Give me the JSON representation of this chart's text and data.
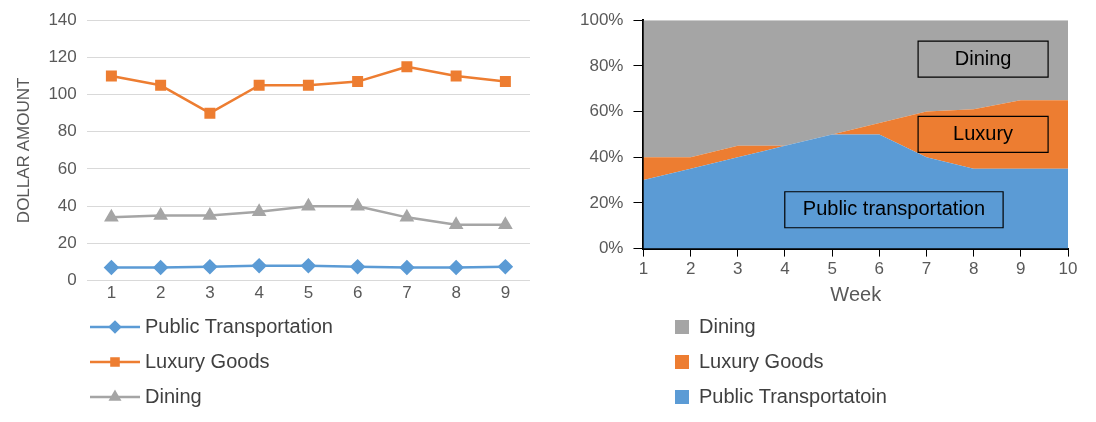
{
  "chart_data": [
    {
      "type": "line",
      "ylabel": "DOLLAR AMOUNT",
      "categories": [
        "1",
        "2",
        "3",
        "4",
        "5",
        "6",
        "7",
        "8",
        "9"
      ],
      "ylim": [
        0,
        140
      ],
      "yticks": [
        0,
        20,
        40,
        60,
        80,
        100,
        120,
        140
      ],
      "grid": "y",
      "legend": "bottom",
      "series": [
        {
          "name": "Public Transportation",
          "color": "#5b9bd5",
          "marker": "diamond",
          "values": [
            7,
            7,
            7.5,
            8,
            8,
            7.5,
            7,
            7,
            7.5
          ]
        },
        {
          "name": "Luxury Goods",
          "color": "#ed7d31",
          "marker": "square",
          "values": [
            110,
            105,
            90,
            105,
            105,
            107,
            115,
            110,
            107
          ]
        },
        {
          "name": "Dining",
          "color": "#a5a5a5",
          "marker": "triangle",
          "values": [
            34,
            35,
            35,
            37,
            40,
            40,
            34,
            30,
            30
          ]
        }
      ]
    },
    {
      "type": "area",
      "stacked": true,
      "xlabel": "Week",
      "categories": [
        "1",
        "2",
        "3",
        "4",
        "5",
        "6",
        "7",
        "8",
        "9",
        "10"
      ],
      "ylim": [
        0,
        100
      ],
      "yticks": [
        {
          "value": 0,
          "label": "0%"
        },
        {
          "value": 20,
          "label": "20%"
        },
        {
          "value": 40,
          "label": "40%"
        },
        {
          "value": 60,
          "label": "60%"
        },
        {
          "value": 80,
          "label": "80%"
        },
        {
          "value": 100,
          "label": "100%"
        }
      ],
      "grid": false,
      "legend": "bottom",
      "annotations": [
        "Dining",
        "Luxury",
        "Public transportation"
      ],
      "series": [
        {
          "name": "Public Transportatoin",
          "color": "#5b9bd5",
          "values": [
            30,
            35,
            40,
            45,
            50,
            50,
            40,
            35,
            35,
            35
          ]
        },
        {
          "name": "Luxury Goods",
          "color": "#ed7d31",
          "values": [
            10,
            5,
            5,
            0,
            0,
            5,
            20,
            26,
            30,
            30
          ]
        },
        {
          "name": "Dining",
          "color": "#a5a5a5",
          "values": [
            60,
            60,
            55,
            55,
            50,
            45,
            40,
            39,
            35,
            35
          ]
        }
      ]
    }
  ]
}
